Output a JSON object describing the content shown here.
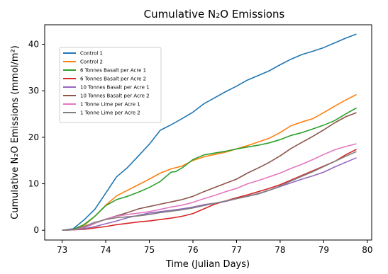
{
  "chart_data": {
    "type": "line",
    "title": "Cumulative N₂O Emissions",
    "xlabel": "Time (Julian Days)",
    "ylabel": "Cumulative N₂O Emissions (mmol/m²)",
    "xlim": [
      72.6,
      80.1
    ],
    "ylim": [
      -2.1,
      44.2
    ],
    "xticks": [
      73,
      74,
      75,
      76,
      77,
      78,
      79,
      80
    ],
    "xtick_labels": [
      "73",
      "74",
      "75",
      "76",
      "77",
      "78",
      "79",
      "80"
    ],
    "yticks": [
      0,
      10,
      20,
      30,
      40
    ],
    "ytick_labels": [
      "0",
      "10",
      "20",
      "30",
      "40"
    ],
    "grid": false,
    "legend_position": "upper-left",
    "series": [
      {
        "name": "Control 1",
        "color": "#1f77b4",
        "x": [
          73.0,
          73.25,
          73.5,
          73.75,
          74.0,
          74.25,
          74.5,
          74.75,
          75.0,
          75.25,
          75.5,
          75.75,
          76.0,
          76.25,
          76.5,
          76.75,
          77.0,
          77.25,
          77.5,
          77.75,
          78.0,
          78.25,
          78.5,
          78.75,
          79.0,
          79.25,
          79.5,
          79.75
        ],
        "y": [
          0,
          0.3,
          2.2,
          4.5,
          8.0,
          11.5,
          13.5,
          16.0,
          18.5,
          21.5,
          22.7,
          24.0,
          25.4,
          27.2,
          28.5,
          29.8,
          31.0,
          32.3,
          33.3,
          34.3,
          35.6,
          36.8,
          37.8,
          38.5,
          39.3,
          40.3,
          41.3,
          42.2
        ]
      },
      {
        "name": "Control 2",
        "color": "#ff7f0e",
        "x": [
          73.0,
          73.25,
          73.5,
          73.75,
          74.0,
          74.25,
          74.5,
          74.75,
          75.0,
          75.25,
          75.5,
          75.75,
          76.0,
          76.25,
          76.5,
          76.75,
          77.0,
          77.25,
          77.5,
          77.75,
          78.0,
          78.25,
          78.5,
          78.75,
          79.0,
          79.25,
          79.5,
          79.75
        ],
        "y": [
          0,
          0.2,
          1.0,
          3.0,
          5.4,
          7.4,
          8.6,
          9.8,
          11.0,
          12.3,
          13.2,
          13.8,
          15.0,
          15.8,
          16.3,
          16.8,
          17.5,
          18.2,
          19.0,
          19.8,
          21.0,
          22.5,
          23.3,
          24.0,
          25.3,
          26.7,
          28.0,
          29.2
        ]
      },
      {
        "name": "6 Tonnes Basalt per Acre 1",
        "color": "#2ca02c",
        "x": [
          73.0,
          73.25,
          73.5,
          73.75,
          74.0,
          74.25,
          74.5,
          74.75,
          75.0,
          75.25,
          75.5,
          75.6,
          75.75,
          76.0,
          76.25,
          76.5,
          76.75,
          77.0,
          77.25,
          77.5,
          77.75,
          78.0,
          78.25,
          78.5,
          78.75,
          79.0,
          79.25,
          79.5,
          79.75
        ],
        "y": [
          0,
          0.2,
          1.2,
          3.0,
          5.3,
          6.6,
          7.3,
          8.2,
          9.2,
          10.5,
          12.5,
          12.6,
          13.4,
          15.2,
          16.2,
          16.6,
          17.0,
          17.5,
          17.9,
          18.3,
          18.8,
          19.5,
          20.4,
          21.0,
          21.8,
          22.6,
          23.6,
          25.0,
          26.3
        ]
      },
      {
        "name": "6 Tonnes Basalt per Acre 2",
        "color": "#d62728",
        "x": [
          73.0,
          73.25,
          73.5,
          73.75,
          74.0,
          74.25,
          74.5,
          74.75,
          75.0,
          75.25,
          75.5,
          75.75,
          76.0,
          76.25,
          76.5,
          76.75,
          77.0,
          77.25,
          77.5,
          77.75,
          78.0,
          78.25,
          78.5,
          78.75,
          79.0,
          79.25,
          79.5,
          79.75
        ],
        "y": [
          0,
          0.1,
          0.2,
          0.5,
          0.8,
          1.2,
          1.5,
          1.8,
          2.0,
          2.3,
          2.6,
          3.0,
          3.6,
          4.6,
          5.6,
          6.3,
          7.0,
          7.6,
          8.3,
          9.0,
          9.8,
          10.8,
          11.8,
          12.8,
          13.8,
          14.8,
          16.2,
          17.4
        ]
      },
      {
        "name": "10 Tonnes Basalt per Acre 1",
        "color": "#9467bd",
        "x": [
          73.0,
          73.25,
          73.5,
          73.75,
          74.0,
          74.25,
          74.5,
          74.75,
          75.0,
          75.25,
          75.5,
          75.75,
          76.0,
          76.25,
          76.5,
          76.75,
          77.0,
          77.25,
          77.5,
          77.75,
          78.0,
          78.25,
          78.5,
          78.75,
          79.0,
          79.25,
          79.5,
          79.75
        ],
        "y": [
          0,
          0.1,
          0.3,
          0.8,
          1.4,
          2.0,
          2.7,
          3.2,
          3.7,
          4.0,
          4.3,
          4.6,
          5.0,
          5.5,
          5.8,
          6.2,
          6.8,
          7.3,
          7.8,
          8.6,
          9.4,
          10.2,
          11.0,
          11.7,
          12.5,
          13.6,
          14.6,
          15.6
        ]
      },
      {
        "name": "10 Tonnes Basalt per Acre 2",
        "color": "#8c564b",
        "x": [
          73.0,
          73.25,
          73.5,
          73.75,
          74.0,
          74.25,
          74.5,
          74.75,
          75.0,
          75.25,
          75.5,
          75.75,
          76.0,
          76.25,
          76.5,
          76.75,
          77.0,
          77.25,
          77.5,
          77.75,
          78.0,
          78.25,
          78.5,
          78.75,
          79.0,
          79.25,
          79.5,
          79.75
        ],
        "y": [
          0,
          0.2,
          0.5,
          1.5,
          2.4,
          3.1,
          3.8,
          4.6,
          5.1,
          5.6,
          6.1,
          6.6,
          7.3,
          8.3,
          9.2,
          10.1,
          11.0,
          12.3,
          13.4,
          14.6,
          16.0,
          17.6,
          18.9,
          20.2,
          21.6,
          23.1,
          24.4,
          25.3
        ]
      },
      {
        "name": "1 Tonne Lime per Acre 1",
        "color": "#e377c2",
        "x": [
          73.0,
          73.25,
          73.5,
          73.75,
          74.0,
          74.25,
          74.5,
          74.75,
          75.0,
          75.25,
          75.5,
          75.75,
          76.0,
          76.25,
          76.5,
          76.75,
          77.0,
          77.25,
          77.5,
          77.75,
          78.0,
          78.25,
          78.5,
          78.75,
          79.0,
          79.25,
          79.5,
          79.75
        ],
        "y": [
          0,
          0.1,
          0.6,
          1.5,
          2.4,
          3.0,
          3.4,
          3.7,
          4.0,
          4.5,
          5.0,
          5.4,
          6.0,
          6.8,
          7.5,
          8.3,
          9.0,
          10.0,
          10.7,
          11.5,
          12.3,
          13.3,
          14.2,
          15.2,
          16.3,
          17.3,
          18.0,
          18.6
        ]
      },
      {
        "name": "1 Tonne Lime per Acre 2",
        "color": "#7f7f7f",
        "x": [
          73.0,
          73.25,
          73.5,
          73.75,
          74.0,
          74.25,
          74.5,
          74.75,
          75.0,
          75.25,
          75.5,
          75.75,
          76.0,
          76.25,
          76.5,
          76.75,
          77.0,
          77.25,
          77.5,
          77.75,
          78.0,
          78.25,
          78.5,
          78.75,
          79.0,
          79.25,
          79.5,
          79.75
        ],
        "y": [
          0,
          0.1,
          0.8,
          1.7,
          2.3,
          2.7,
          2.9,
          3.1,
          3.4,
          3.8,
          4.1,
          4.4,
          4.8,
          5.3,
          5.8,
          6.3,
          6.8,
          7.3,
          7.9,
          8.6,
          9.5,
          10.6,
          11.6,
          12.6,
          13.7,
          14.8,
          15.9,
          16.9
        ]
      }
    ]
  }
}
